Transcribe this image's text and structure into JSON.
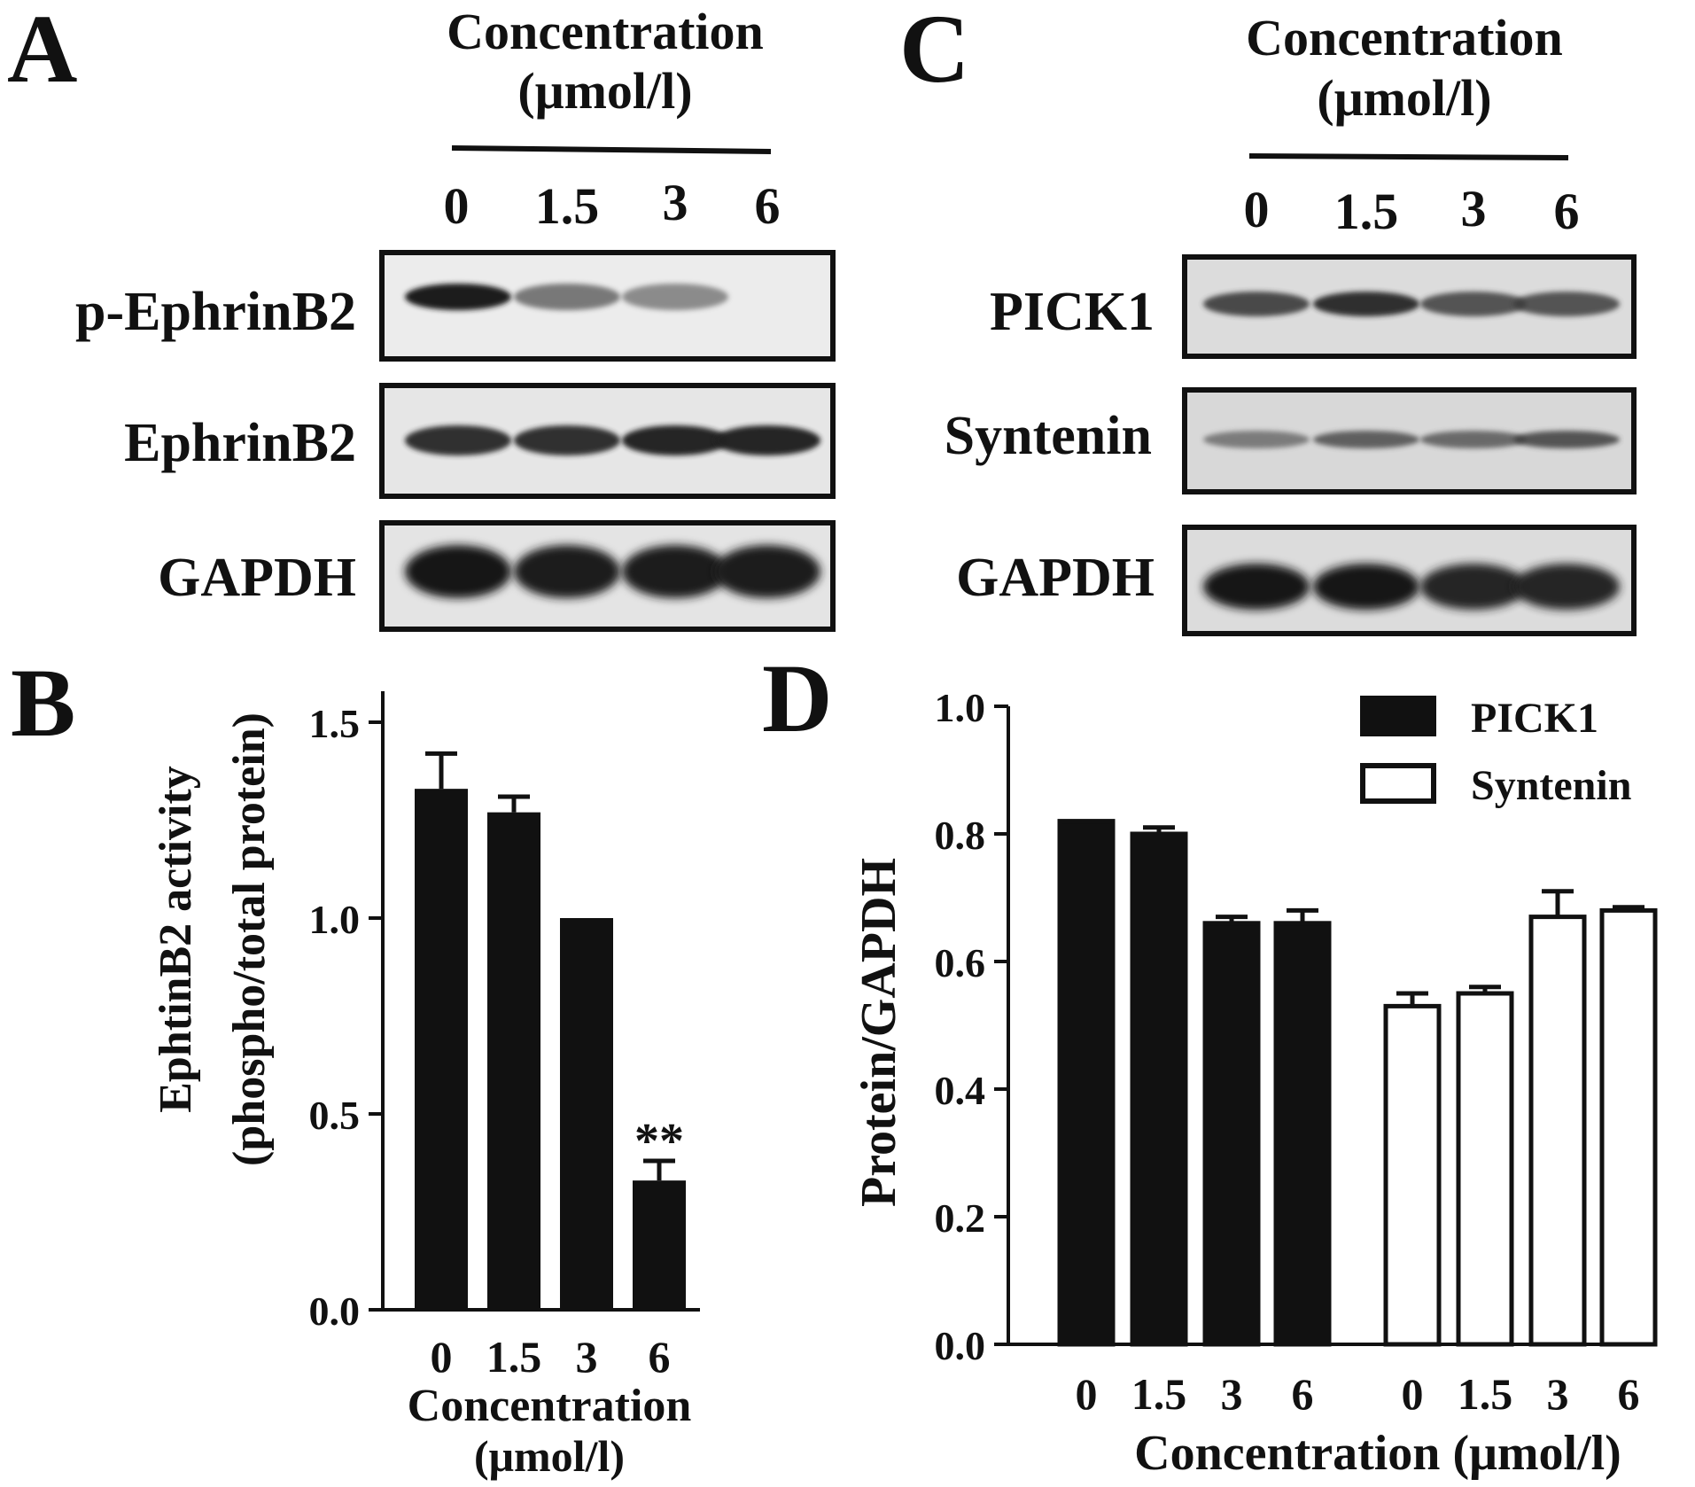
{
  "panels": {
    "A": {
      "letter": "A",
      "header_line1": "Concentration",
      "header_line2": "(μmol/l)",
      "lanes": [
        "0",
        "1.5",
        "3",
        "6"
      ],
      "blots": [
        {
          "label": "p-EphrinB2",
          "band_intensity": [
            0.95,
            0.55,
            0.45,
            0.0
          ]
        },
        {
          "label": "EphrinB2",
          "band_intensity": [
            0.85,
            0.85,
            0.9,
            0.9
          ]
        },
        {
          "label": "GAPDH",
          "band_intensity": [
            1.0,
            0.95,
            0.95,
            0.95
          ]
        }
      ]
    },
    "B": {
      "letter": "B"
    },
    "C": {
      "letter": "C",
      "header_line1": "Concentration",
      "header_line2": "(μmol/l)",
      "lanes": [
        "0",
        "1.5",
        "3",
        "6"
      ],
      "blots": [
        {
          "label": "PICK1",
          "band_intensity": [
            0.75,
            0.85,
            0.7,
            0.7
          ]
        },
        {
          "label": "Syntenin",
          "band_intensity": [
            0.5,
            0.65,
            0.6,
            0.7
          ]
        },
        {
          "label": "GAPDH",
          "band_intensity": [
            1.0,
            1.0,
            0.9,
            0.9
          ]
        }
      ]
    },
    "D": {
      "letter": "D"
    }
  },
  "chart_data": [
    {
      "panel": "B",
      "type": "bar",
      "categories": [
        "0",
        "1.5",
        "3",
        "6"
      ],
      "values": [
        1.33,
        1.27,
        1.0,
        0.33
      ],
      "errors": [
        0.09,
        0.04,
        0.0,
        0.05
      ],
      "annotations": [
        {
          "category": "6",
          "text": "**"
        }
      ],
      "xlabel_line1": "Concentration",
      "xlabel_line2": "(μmol/l)",
      "ylabel_line1": "EphtinB2 activity",
      "ylabel_line2": "(phospho/total protein)",
      "ylim": [
        0,
        1.5
      ],
      "yticks": [
        "0.0",
        "0.5",
        "1.0",
        "1.5"
      ],
      "bar_color": "#111111",
      "grid": false
    },
    {
      "panel": "D",
      "type": "bar",
      "categories": [
        "0",
        "1.5",
        "3",
        "6"
      ],
      "series": [
        {
          "name": "PICK1",
          "values": [
            0.82,
            0.8,
            0.66,
            0.66
          ],
          "errors": [
            0.0,
            0.01,
            0.01,
            0.02
          ],
          "fill": "#111111"
        },
        {
          "name": "Syntenin",
          "values": [
            0.53,
            0.55,
            0.67,
            0.68
          ],
          "errors": [
            0.02,
            0.01,
            0.04,
            0.005
          ],
          "fill": "#ffffff"
        }
      ],
      "xlabel": "Concentration (μmol/l)",
      "ylabel": "Protein/GAPDH",
      "ylim": [
        0,
        1.0
      ],
      "yticks": [
        "0.0",
        "0.2",
        "0.4",
        "0.6",
        "0.8",
        "1.0"
      ],
      "legend_position": "top-right",
      "grid": false
    }
  ]
}
